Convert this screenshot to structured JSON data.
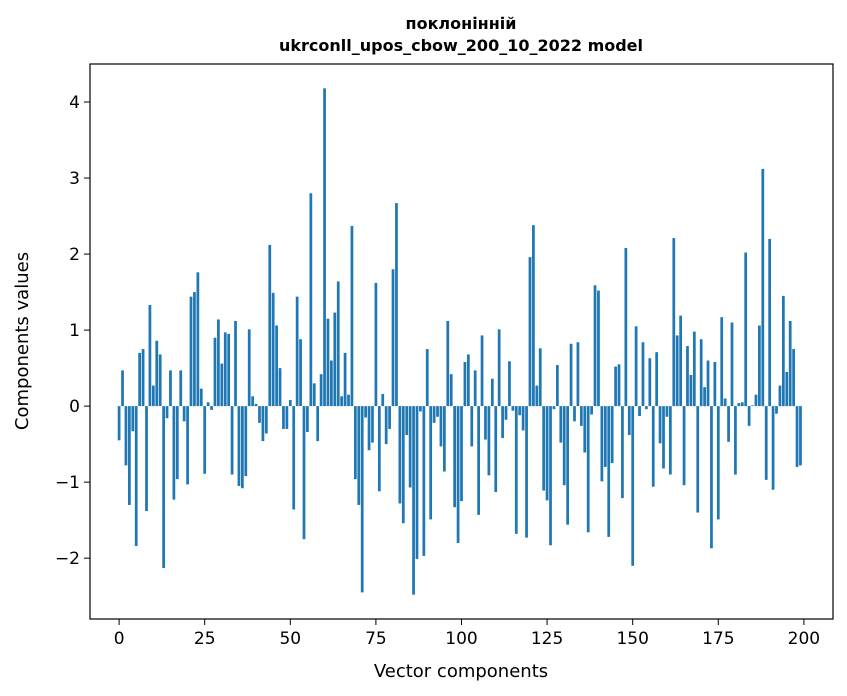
{
  "chart_data": {
    "type": "bar",
    "title_line1": "поклонінній",
    "title_line2": "ukrconll_upos_cbow_200_10_2022 model",
    "xlabel": "Vector components",
    "ylabel": "Components values",
    "xlim": [
      -8.5,
      208.5
    ],
    "ylim": [
      -2.8,
      4.5
    ],
    "xticks": [
      0,
      25,
      50,
      75,
      100,
      125,
      150,
      175,
      200
    ],
    "yticks": [
      -2,
      -1,
      0,
      1,
      2,
      3,
      4
    ],
    "ytick_labels": [
      "−2",
      "−1",
      "0",
      "1",
      "2",
      "3",
      "4"
    ],
    "bar_color": "#1f77b4",
    "grid": false,
    "values": [
      -0.45,
      0.47,
      -0.78,
      -1.3,
      -0.33,
      -1.84,
      0.7,
      0.75,
      -1.38,
      1.33,
      0.27,
      0.86,
      0.68,
      -2.13,
      -0.16,
      0.47,
      -1.23,
      -0.96,
      0.47,
      -0.2,
      -1.03,
      1.44,
      1.5,
      1.76,
      0.23,
      -0.89,
      0.05,
      -0.05,
      0.9,
      1.14,
      0.56,
      0.97,
      0.95,
      -0.9,
      1.12,
      -1.05,
      -1.08,
      -0.92,
      1.01,
      0.13,
      0.03,
      -0.22,
      -0.46,
      -0.36,
      2.12,
      1.49,
      1.06,
      0.5,
      -0.3,
      -0.3,
      0.08,
      -1.36,
      1.44,
      0.88,
      -1.75,
      -0.34,
      2.8,
      0.3,
      -0.46,
      0.42,
      4.18,
      1.15,
      0.6,
      1.23,
      1.64,
      0.13,
      0.7,
      0.15,
      2.37,
      -0.96,
      -1.3,
      -2.45,
      -0.15,
      -0.58,
      -0.48,
      1.62,
      -1.12,
      0.16,
      -0.5,
      -0.3,
      1.8,
      2.67,
      -1.28,
      -1.54,
      -0.38,
      -1.07,
      -2.48,
      -2.01,
      -0.07,
      -1.97,
      0.75,
      -1.49,
      -0.22,
      -0.14,
      -0.53,
      -0.86,
      1.12,
      0.42,
      -1.33,
      -1.8,
      -1.25,
      0.58,
      0.68,
      -0.53,
      0.47,
      -1.43,
      0.93,
      -0.44,
      -0.91,
      0.36,
      -1.13,
      1.01,
      -0.42,
      -0.18,
      0.59,
      -0.06,
      -1.68,
      -0.12,
      -0.32,
      -1.73,
      1.96,
      2.38,
      0.27,
      0.76,
      -1.11,
      -1.24,
      -1.83,
      -0.04,
      0.54,
      -0.48,
      -1.04,
      -1.56,
      0.82,
      -0.2,
      0.84,
      -0.26,
      -0.61,
      -1.66,
      -0.11,
      1.59,
      1.52,
      -0.99,
      -0.8,
      -1.72,
      -0.75,
      0.52,
      0.55,
      -1.21,
      2.08,
      -0.38,
      -2.1,
      1.05,
      -0.13,
      0.84,
      -0.04,
      0.63,
      -1.06,
      0.71,
      -0.49,
      -0.82,
      -0.14,
      -0.9,
      2.21,
      0.93,
      1.19,
      -1.04,
      0.79,
      0.41,
      0.98,
      -1.4,
      0.88,
      0.25,
      0.6,
      -1.87,
      0.58,
      -1.49,
      1.17,
      0.1,
      -0.47,
      1.1,
      -0.9,
      0.04,
      0.05,
      2.02,
      -0.26,
      0.01,
      0.15,
      1.06,
      3.12,
      -0.97,
      2.2,
      -1.1,
      -0.1,
      0.27,
      1.45,
      0.45,
      1.12,
      0.75,
      -0.8,
      -0.78
    ]
  }
}
